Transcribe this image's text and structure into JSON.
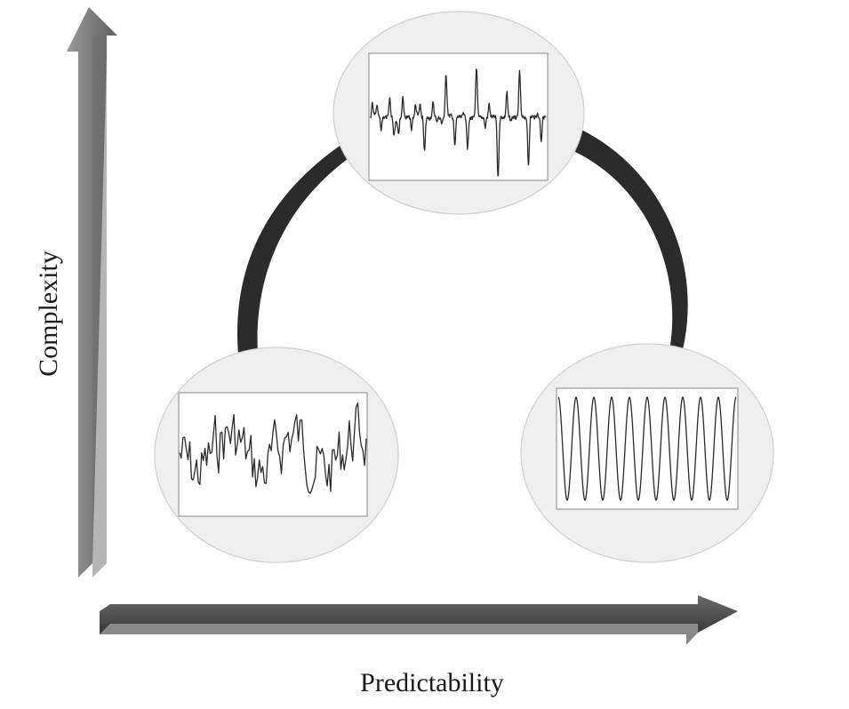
{
  "axes": {
    "x_label": "Predictability",
    "y_label": "Complexity"
  },
  "nodes": [
    {
      "id": "random",
      "signal": "irregular-noise"
    },
    {
      "id": "complex",
      "signal": "spiky-quasi-periodic"
    },
    {
      "id": "regular",
      "signal": "sine-wave",
      "cycles": 10
    }
  ],
  "colors": {
    "arrow_light": "#8c8c8c",
    "arrow_dark": "#5a5a5a",
    "arc": "#2b2b2b",
    "bubble": "#efefef"
  }
}
